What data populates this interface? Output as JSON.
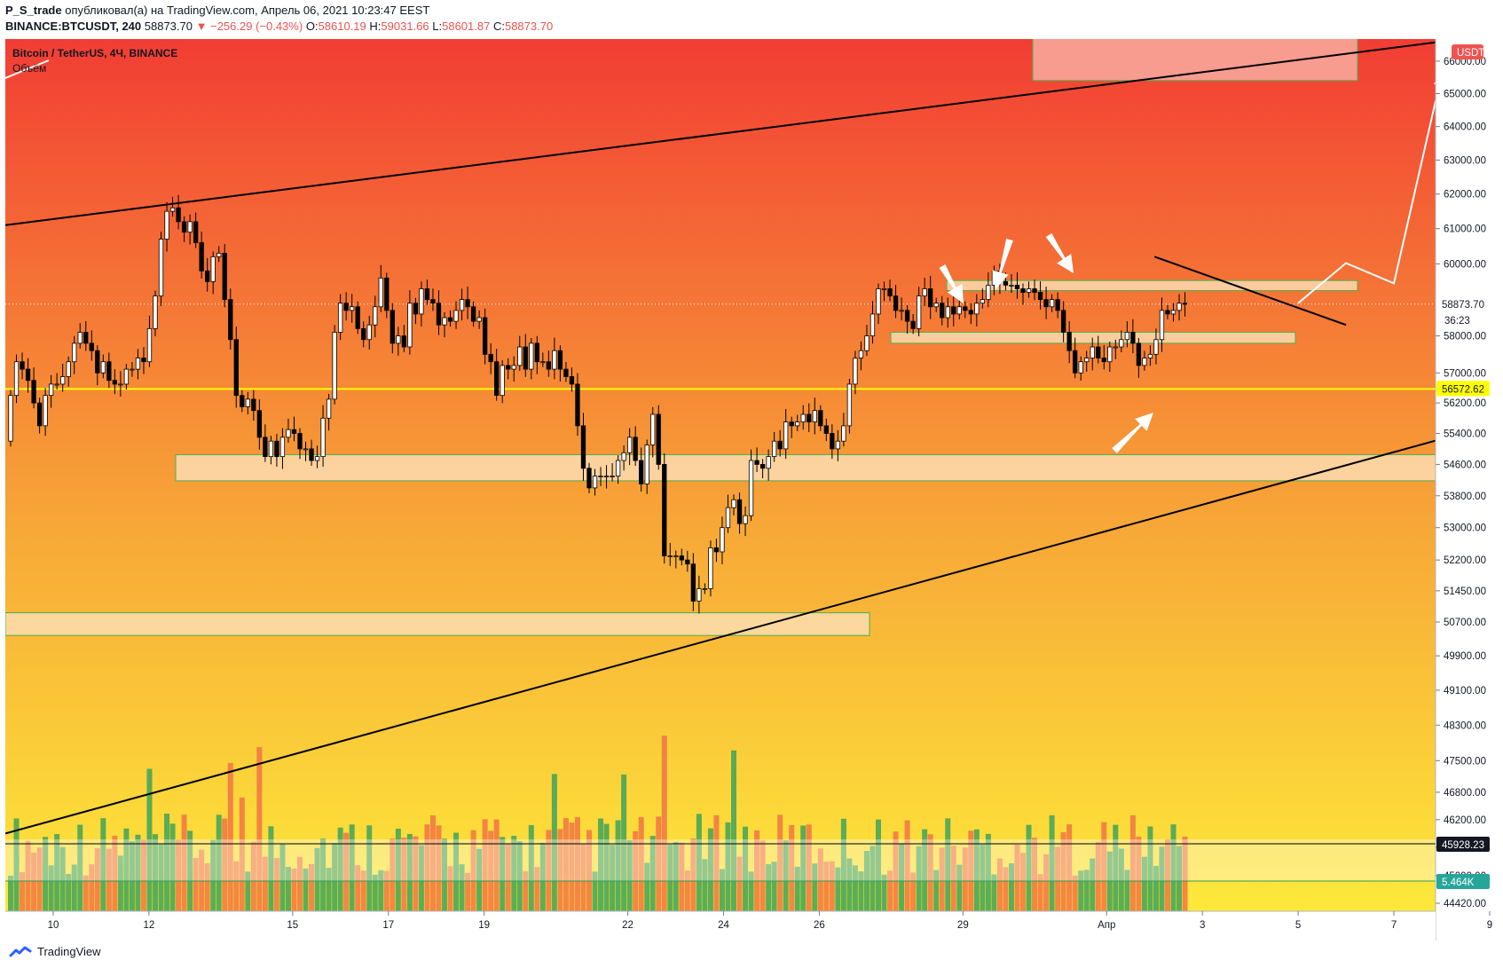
{
  "header": {
    "author": "P_S_trade",
    "published": "опубликовал(а) на TradingView.com, Апрель 06, 2021 10:23:47 EEST",
    "symbol": "BINANCE:BTCUSDT, 240",
    "price": "58873.70",
    "change": "▼ −256.29 (−0.43%)",
    "open_label": "O:",
    "open": "58610.19",
    "high_label": "H:",
    "high": "59031.66",
    "low_label": "L:",
    "low": "58601.87",
    "close_label": "C:",
    "close": "58873.70"
  },
  "legend": {
    "title": "Bitcoin / TetherUS, 4Ч, BINANCE",
    "volume": "Объём"
  },
  "footer": {
    "brand": "TradingView",
    "logo_icon": "tradingview-logo-icon"
  },
  "chart_data": {
    "type": "candlestick",
    "currency_badge": "USDT",
    "y_scale": "log",
    "ylim": [
      44420,
      66800
    ],
    "y_ticks": [
      "66000.00",
      "65000.00",
      "64000.00",
      "63000.00",
      "62000.00",
      "61000.00",
      "60000.00",
      "58000.00",
      "57000.00",
      "56200.00",
      "55400.00",
      "54600.00",
      "53800.00",
      "53000.00",
      "52200.00",
      "51450.00",
      "50700.00",
      "49900.00",
      "49100.00",
      "48300.00",
      "47500.00",
      "46800.00",
      "46200.00",
      "45600.00",
      "45000.00",
      "44420.00"
    ],
    "x_ticks": [
      "10",
      "12",
      "15",
      "17",
      "19",
      "22",
      "24",
      "26",
      "29",
      "Апр",
      "3",
      "5",
      "7",
      "9"
    ],
    "badges": {
      "last_price": "58873.70",
      "countdown": "36:23",
      "yellow_level": "56572.62",
      "volume_ma": "45928.23",
      "volume_last": "5.464K"
    },
    "levels": {
      "yellow_line": 56572.62,
      "volume_ma_line": 45928.23
    },
    "zones": [
      {
        "from": 65400,
        "to": 66900
      },
      {
        "from": 59250,
        "to": 59530
      },
      {
        "from": 57800,
        "to": 58100
      },
      {
        "from": 54180,
        "to": 54850
      },
      {
        "from": 50380,
        "to": 50920
      }
    ],
    "trendlines": [
      {
        "x1": "Mar 09",
        "y1": 61100,
        "x2": "Apr 09",
        "y2": 66800
      },
      {
        "x1": "Mar 09",
        "y1": 45900,
        "x2": "Apr 09",
        "y2": 55600
      },
      {
        "x1": "Apr 02",
        "y1": 60200,
        "x2": "Apr 06",
        "y2": 58300
      }
    ],
    "projection": [
      [
        "Apr 05",
        58900
      ],
      [
        "Apr 06",
        60020
      ],
      [
        "Apr 07",
        59450
      ],
      [
        "Apr 08",
        65600
      ]
    ],
    "colors": {
      "up": "#ffffff",
      "down": "#000000",
      "vol_up": "#2e9d5e",
      "vol_down": "#ef6c46",
      "gradient_top": "#f23d34",
      "gradient_mid": "#f7a637",
      "gradient_bottom": "#fde93a",
      "zone_fill": "#fce0b8",
      "zone_border": "#4caf50",
      "yellow": "#ffff00"
    },
    "close": [
      56400,
      57300,
      57100,
      56800,
      56200,
      55600,
      56400,
      56700,
      56700,
      56900,
      57300,
      57800,
      58100,
      57800,
      57600,
      57000,
      57300,
      56800,
      56700,
      56700,
      57100,
      57100,
      57400,
      57300,
      58200,
      59100,
      60700,
      61500,
      61600,
      61200,
      60900,
      61200,
      60600,
      59800,
      59500,
      60200,
      60300,
      59000,
      57900,
      56400,
      56100,
      56300,
      56000,
      55300,
      54800,
      55200,
      54800,
      55300,
      55500,
      55400,
      55000,
      55000,
      54700,
      54800,
      55800,
      56300,
      58100,
      58900,
      58700,
      58800,
      58200,
      57900,
      58300,
      58800,
      59600,
      58700,
      57800,
      58000,
      57700,
      58900,
      58600,
      59300,
      59000,
      58900,
      58300,
      58500,
      58400,
      58700,
      59000,
      58800,
      58400,
      58500,
      57500,
      57300,
      56400,
      57200,
      57100,
      57200,
      57700,
      57100,
      57800,
      57300,
      57300,
      57100,
      57600,
      57100,
      56900,
      56700,
      55600,
      54500,
      54000,
      54300,
      54300,
      54300,
      54300,
      54700,
      54900,
      55300,
      54700,
      54100,
      55100,
      55900,
      54600,
      52300,
      52300,
      52300,
      52200,
      52100,
      51200,
      51500,
      51500,
      52500,
      52400,
      53000,
      53500,
      53700,
      53100,
      53300,
      54700,
      54600,
      54500,
      54800,
      55200,
      55000,
      55700,
      55600,
      55700,
      55900,
      55700,
      56000,
      55600,
      55400,
      55000,
      55200,
      55600,
      56700,
      57400,
      57600,
      58000,
      58600,
      59300,
      59300,
      59100,
      58700,
      58700,
      58400,
      58200,
      59100,
      59300,
      58800,
      58900,
      58500,
      58800,
      58600,
      58800,
      58700,
      58600,
      58900,
      59000,
      59400,
      59800,
      59500,
      59400,
      59400,
      59300,
      59200,
      59300,
      59200,
      59000,
      58800,
      59000,
      58700,
      58100,
      57600,
      57000,
      57300,
      57400,
      57700,
      57400,
      57300,
      57700,
      57700,
      57900,
      58100,
      57800,
      57200,
      57400,
      57500,
      57900,
      58700,
      58600,
      58700,
      58900,
      58870
    ],
    "volume_note": "bars below, values read from volume pane (MA 45928.23, last 5.464K)"
  }
}
